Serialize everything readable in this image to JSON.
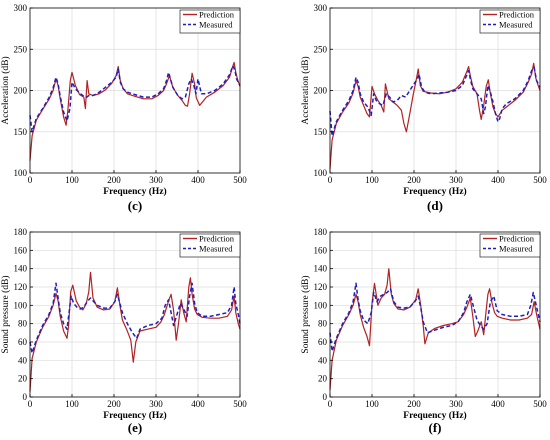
{
  "chart_data": [
    {
      "panel": "(c)",
      "type": "line",
      "xlabel": "Frequency (Hz)",
      "ylabel": "Acceleration (dB)",
      "xlim": [
        0,
        500
      ],
      "ylim": [
        100,
        300
      ],
      "xticks": [
        0,
        100,
        200,
        300,
        400,
        500
      ],
      "yticks": [
        100,
        150,
        200,
        250,
        300
      ],
      "grid": true,
      "legend_position": "top-right",
      "series": [
        {
          "name": "Prediction",
          "color": "#b22222",
          "style": "solid",
          "x": [
            0,
            5,
            15,
            30,
            45,
            55,
            62,
            67,
            72,
            80,
            86,
            90,
            96,
            100,
            108,
            118,
            128,
            132,
            136,
            140,
            150,
            165,
            180,
            195,
            205,
            210,
            215,
            222,
            232,
            250,
            270,
            290,
            305,
            318,
            325,
            332,
            340,
            352,
            362,
            370,
            375,
            380,
            386,
            392,
            396,
            404,
            420,
            440,
            460,
            475,
            482,
            486,
            490,
            495,
            500
          ],
          "y": [
            115,
            145,
            164,
            177,
            189,
            200,
            214,
            206,
            190,
            168,
            158,
            175,
            212,
            222,
            206,
            195,
            192,
            178,
            212,
            196,
            194,
            196,
            201,
            209,
            218,
            229,
            212,
            202,
            196,
            193,
            190,
            190,
            194,
            200,
            208,
            218,
            204,
            194,
            188,
            182,
            181,
            196,
            221,
            208,
            191,
            182,
            192,
            198,
            206,
            216,
            228,
            234,
            222,
            212,
            205
          ]
        },
        {
          "name": "Measured",
          "color": "#1f1fbf",
          "style": "dashed",
          "x": [
            0,
            5,
            15,
            30,
            45,
            55,
            62,
            67,
            72,
            80,
            88,
            95,
            100,
            108,
            118,
            128,
            135,
            140,
            150,
            165,
            180,
            195,
            205,
            210,
            215,
            222,
            232,
            250,
            270,
            290,
            305,
            318,
            325,
            330,
            340,
            352,
            362,
            370,
            378,
            384,
            390,
            395,
            400,
            408,
            420,
            440,
            460,
            475,
            483,
            488,
            492,
            500
          ],
          "y": [
            170,
            150,
            166,
            178,
            191,
            203,
            216,
            208,
            193,
            174,
            163,
            178,
            210,
            202,
            197,
            193,
            192,
            194,
            194,
            198,
            204,
            210,
            216,
            226,
            210,
            202,
            198,
            195,
            192,
            192,
            196,
            202,
            212,
            222,
            204,
            194,
            190,
            192,
            208,
            214,
            206,
            196,
            214,
            196,
            196,
            200,
            208,
            219,
            230,
            224,
            214,
            206
          ]
        }
      ]
    },
    {
      "panel": "(d)",
      "type": "line",
      "xlabel": "Frequency (Hz)",
      "ylabel": "Acceleration (dB)",
      "xlim": [
        0,
        500
      ],
      "ylim": [
        100,
        300
      ],
      "xticks": [
        0,
        100,
        200,
        300,
        400,
        500
      ],
      "yticks": [
        100,
        150,
        200,
        250,
        300
      ],
      "grid": true,
      "legend_position": "top-right",
      "series": [
        {
          "name": "Prediction",
          "color": "#b22222",
          "style": "solid",
          "x": [
            0,
            5,
            15,
            30,
            45,
            55,
            62,
            67,
            72,
            80,
            88,
            94,
            100,
            106,
            114,
            122,
            128,
            132,
            140,
            150,
            160,
            170,
            176,
            182,
            190,
            198,
            205,
            210,
            215,
            222,
            240,
            260,
            280,
            300,
            315,
            325,
            330,
            334,
            340,
            350,
            356,
            360,
            366,
            372,
            377,
            382,
            388,
            394,
            400,
            410,
            420,
            440,
            460,
            472,
            480,
            485,
            490,
            495,
            500
          ],
          "y": [
            105,
            140,
            160,
            174,
            185,
            197,
            212,
            205,
            192,
            182,
            172,
            168,
            205,
            196,
            188,
            182,
            174,
            208,
            190,
            186,
            182,
            176,
            160,
            150,
            172,
            195,
            212,
            226,
            206,
            199,
            197,
            196,
            198,
            202,
            210,
            222,
            229,
            218,
            205,
            196,
            176,
            165,
            182,
            205,
            213,
            196,
            180,
            172,
            168,
            176,
            180,
            188,
            198,
            210,
            220,
            233,
            215,
            207,
            200
          ]
        },
        {
          "name": "Measured",
          "color": "#1f1fbf",
          "style": "dashed",
          "x": [
            0,
            5,
            15,
            30,
            45,
            55,
            62,
            67,
            72,
            80,
            90,
            98,
            104,
            110,
            118,
            126,
            134,
            142,
            150,
            160,
            170,
            180,
            190,
            200,
            208,
            212,
            218,
            226,
            240,
            260,
            280,
            300,
            315,
            325,
            330,
            335,
            340,
            350,
            360,
            366,
            370,
            376,
            382,
            388,
            394,
            400,
            404,
            410,
            420,
            440,
            460,
            472,
            480,
            486,
            492,
            500
          ],
          "y": [
            175,
            145,
            162,
            176,
            188,
            200,
            216,
            210,
            196,
            186,
            180,
            170,
            196,
            188,
            184,
            182,
            196,
            192,
            186,
            188,
            194,
            192,
            200,
            208,
            214,
            220,
            204,
            198,
            196,
            197,
            198,
            200,
            206,
            218,
            224,
            212,
            202,
            196,
            190,
            172,
            180,
            206,
            198,
            186,
            172,
            162,
            166,
            178,
            184,
            190,
            200,
            212,
            224,
            228,
            212,
            204
          ]
        }
      ]
    },
    {
      "panel": "(e)",
      "type": "line",
      "xlabel": "Frequency (Hz)",
      "ylabel": "Sound pressure (dB)",
      "xlim": [
        0,
        500
      ],
      "ylim": [
        0,
        180
      ],
      "xticks": [
        0,
        100,
        200,
        300,
        400,
        500
      ],
      "yticks": [
        0,
        20,
        40,
        60,
        80,
        100,
        120,
        140,
        160,
        180
      ],
      "grid": true,
      "legend_position": "top-right",
      "series": [
        {
          "name": "Prediction",
          "color": "#b22222",
          "style": "solid",
          "x": [
            0,
            5,
            15,
            30,
            45,
            55,
            62,
            67,
            72,
            80,
            88,
            92,
            97,
            102,
            110,
            118,
            126,
            134,
            140,
            144,
            150,
            160,
            175,
            190,
            202,
            208,
            214,
            220,
            230,
            240,
            246,
            252,
            262,
            280,
            300,
            312,
            320,
            330,
            336,
            342,
            348,
            354,
            360,
            366,
            372,
            378,
            382,
            386,
            392,
            398,
            410,
            430,
            450,
            470,
            480,
            486,
            490,
            496,
            500
          ],
          "y": [
            6,
            42,
            60,
            76,
            88,
            100,
            113,
            105,
            88,
            72,
            64,
            78,
            115,
            122,
            105,
            98,
            95,
            102,
            115,
            136,
            108,
            98,
            95,
            96,
            104,
            119,
            100,
            84,
            74,
            62,
            38,
            60,
            72,
            74,
            76,
            82,
            90,
            105,
            112,
            94,
            62,
            82,
            106,
            92,
            82,
            120,
            130,
            112,
            96,
            90,
            87,
            86,
            86,
            88,
            95,
            110,
            92,
            80,
            74
          ]
        },
        {
          "name": "Measured",
          "color": "#1f1fbf",
          "style": "dashed",
          "x": [
            0,
            5,
            15,
            30,
            45,
            55,
            62,
            67,
            72,
            80,
            88,
            92,
            98,
            104,
            112,
            120,
            128,
            136,
            144,
            152,
            160,
            175,
            190,
            202,
            208,
            214,
            220,
            232,
            244,
            254,
            262,
            280,
            300,
            314,
            322,
            330,
            336,
            342,
            350,
            358,
            366,
            374,
            380,
            386,
            392,
            398,
            410,
            430,
            450,
            470,
            480,
            486,
            490,
            496,
            500
          ],
          "y": [
            60,
            48,
            62,
            78,
            90,
            102,
            124,
            108,
            92,
            80,
            74,
            88,
            110,
            102,
            98,
            96,
            98,
            104,
            108,
            104,
            100,
            97,
            97,
            104,
            112,
            102,
            92,
            80,
            70,
            64,
            74,
            78,
            80,
            86,
            100,
            106,
            92,
            78,
            90,
            102,
            96,
            88,
            110,
            124,
            102,
            92,
            88,
            88,
            90,
            92,
            100,
            120,
            102,
            90,
            80
          ]
        }
      ]
    },
    {
      "panel": "(f)",
      "type": "line",
      "xlabel": "Frequency (Hz)",
      "ylabel": "Sound pressure (dB)",
      "xlim": [
        0,
        500
      ],
      "ylim": [
        0,
        180
      ],
      "xticks": [
        0,
        100,
        200,
        300,
        400,
        500
      ],
      "yticks": [
        0,
        20,
        40,
        60,
        80,
        100,
        120,
        140,
        160,
        180
      ],
      "grid": true,
      "legend_position": "top-right",
      "series": [
        {
          "name": "Prediction",
          "color": "#b22222",
          "style": "solid",
          "x": [
            0,
            5,
            15,
            30,
            45,
            55,
            62,
            67,
            72,
            80,
            88,
            94,
            100,
            106,
            114,
            122,
            130,
            136,
            140,
            146,
            152,
            162,
            176,
            190,
            204,
            210,
            216,
            222,
            226,
            234,
            250,
            270,
            290,
            305,
            318,
            326,
            334,
            340,
            346,
            352,
            360,
            366,
            372,
            376,
            380,
            386,
            392,
            398,
            410,
            430,
            450,
            470,
            480,
            486,
            492,
            500
          ],
          "y": [
            8,
            40,
            62,
            78,
            90,
            100,
            112,
            104,
            90,
            76,
            66,
            56,
            102,
            124,
            100,
            108,
            112,
            122,
            140,
            112,
            102,
            96,
            95,
            98,
            106,
            118,
            100,
            78,
            58,
            70,
            75,
            78,
            80,
            82,
            90,
            98,
            108,
            88,
            66,
            72,
            82,
            68,
            95,
            112,
            118,
            102,
            92,
            88,
            86,
            84,
            84,
            86,
            90,
            104,
            90,
            74
          ]
        },
        {
          "name": "Measured",
          "color": "#1f1fbf",
          "style": "dashed",
          "x": [
            0,
            5,
            15,
            30,
            45,
            55,
            62,
            67,
            72,
            80,
            90,
            98,
            104,
            112,
            120,
            128,
            136,
            144,
            152,
            162,
            176,
            190,
            202,
            210,
            216,
            222,
            232,
            244,
            256,
            270,
            290,
            305,
            318,
            326,
            334,
            342,
            350,
            358,
            366,
            374,
            382,
            390,
            398,
            410,
            430,
            450,
            470,
            478,
            484,
            490,
            496,
            500
          ],
          "y": [
            70,
            50,
            64,
            80,
            92,
            104,
            124,
            106,
            94,
            84,
            80,
            92,
            114,
            104,
            110,
            112,
            114,
            118,
            104,
            98,
            97,
            98,
            104,
            110,
            98,
            82,
            70,
            72,
            74,
            76,
            78,
            82,
            92,
            104,
            112,
            98,
            84,
            78,
            74,
            80,
            104,
            110,
            94,
            90,
            88,
            88,
            90,
            100,
            114,
            102,
            90,
            82
          ]
        }
      ]
    }
  ]
}
